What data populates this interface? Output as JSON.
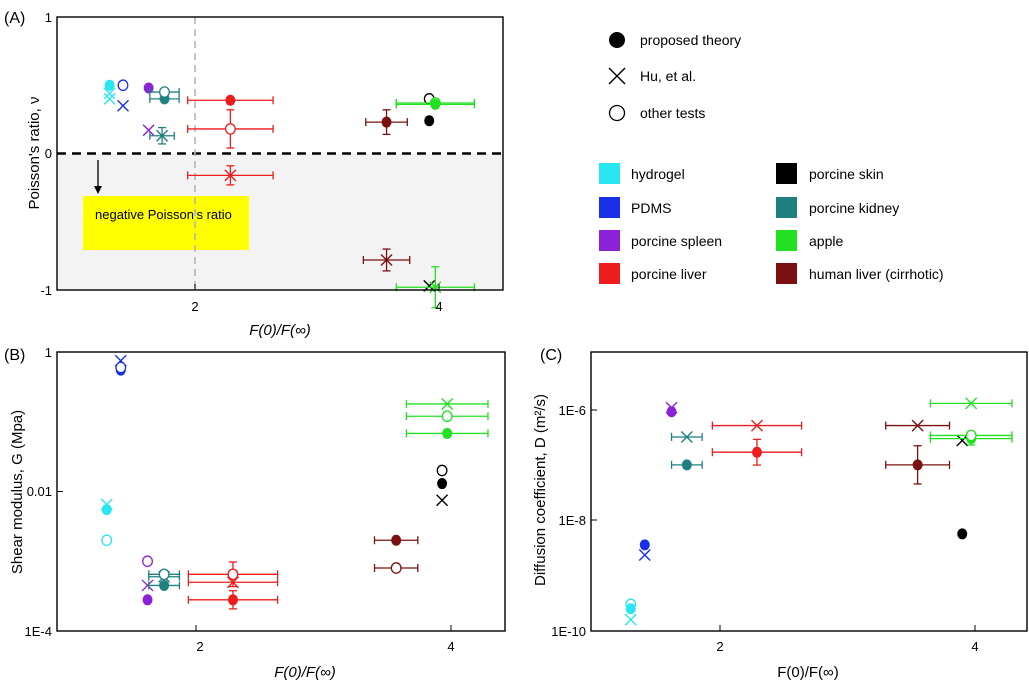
{
  "colors": {
    "hydrogel": "#29e6f0",
    "pdms": "#1a2fe8",
    "spleen": "#8b22d8",
    "liver": "#ee1c1c",
    "skin": "#000000",
    "kidney": "#1f8080",
    "apple": "#22e022",
    "human_liver": "#7a1010",
    "shade": "#f3f3f3",
    "yellow_box": "#ffff00"
  },
  "legend": {
    "markers": [
      {
        "symbol": "filled-circle",
        "label": "proposed theory"
      },
      {
        "symbol": "cross",
        "label": "Hu, et al."
      },
      {
        "symbol": "open-circle",
        "label": "other tests"
      }
    ],
    "materials": [
      {
        "key": "hydrogel",
        "label": "hydrogel"
      },
      {
        "key": "pdms",
        "label": "PDMS"
      },
      {
        "key": "spleen",
        "label": "porcine spleen"
      },
      {
        "key": "liver",
        "label": "porcine liver"
      },
      {
        "key": "skin",
        "label": "porcine skin"
      },
      {
        "key": "kidney",
        "label": "porcine kidney"
      },
      {
        "key": "apple",
        "label": "apple"
      },
      {
        "key": "human_liver",
        "label": "human liver (cirrhotic)"
      }
    ]
  },
  "chart_data": [
    {
      "panel_label": "(A)",
      "type": "scatter",
      "xlabel": "F(0)/F(∞)",
      "ylabel": "Poisson's ratio, ν",
      "xlim": [
        1.0,
        4.5
      ],
      "ylim": [
        -1,
        1
      ],
      "xticks": [
        2,
        4
      ],
      "yticks": [
        {
          "value": 1,
          "label": "1"
        },
        {
          "value": 0,
          "label": "0"
        },
        {
          "value": -1,
          "label": "-1"
        }
      ],
      "annotation": "negative Poisson's ratio",
      "reference_lines": {
        "y": 0,
        "x": 2
      },
      "points": [
        {
          "m": "hydrogel",
          "s": "cross",
          "x": 1.3,
          "y": 0.44
        },
        {
          "m": "hydrogel",
          "s": "filled",
          "x": 1.3,
          "y": 0.5
        },
        {
          "m": "hydrogel",
          "s": "cross",
          "x": 1.3,
          "y": 0.4
        },
        {
          "m": "pdms",
          "s": "filled",
          "x": 1.41,
          "y": 0.5
        },
        {
          "m": "pdms",
          "s": "open",
          "x": 1.41,
          "y": 0.5
        },
        {
          "m": "pdms",
          "s": "cross",
          "x": 1.41,
          "y": 0.35
        },
        {
          "m": "spleen",
          "s": "filled",
          "x": 1.62,
          "y": 0.48
        },
        {
          "m": "spleen",
          "s": "cross",
          "x": 1.62,
          "y": 0.17
        },
        {
          "m": "kidney",
          "s": "filled",
          "x": 1.75,
          "y": 0.4,
          "xerr": 0.12
        },
        {
          "m": "kidney",
          "s": "open",
          "x": 1.75,
          "y": 0.45,
          "xerr": 0.12
        },
        {
          "m": "kidney",
          "s": "cross",
          "x": 1.73,
          "y": 0.13,
          "xerr": 0.1,
          "yerr": 0.06
        },
        {
          "m": "liver",
          "s": "filled",
          "x": 2.29,
          "y": 0.39,
          "xerr": 0.35
        },
        {
          "m": "liver",
          "s": "open",
          "x": 2.29,
          "y": 0.18,
          "xerr": 0.35,
          "yerr": 0.14
        },
        {
          "m": "liver",
          "s": "cross",
          "x": 2.29,
          "y": -0.16,
          "xerr": 0.35,
          "yerr": 0.07
        },
        {
          "m": "human_liver",
          "s": "filled",
          "x": 3.57,
          "y": 0.23,
          "xerr": 0.17,
          "yerr": 0.09
        },
        {
          "m": "human_liver",
          "s": "cross",
          "x": 3.57,
          "y": -0.78,
          "xerr": 0.19,
          "yerr": 0.08
        },
        {
          "m": "skin",
          "s": "filled",
          "x": 3.92,
          "y": 0.24
        },
        {
          "m": "skin",
          "s": "open",
          "x": 3.92,
          "y": 0.4
        },
        {
          "m": "skin",
          "s": "cross",
          "x": 3.92,
          "y": -0.97
        },
        {
          "m": "apple",
          "s": "open",
          "x": 3.97,
          "y": 0.37,
          "xerr": 0.32
        },
        {
          "m": "apple",
          "s": "filled",
          "x": 3.97,
          "y": 0.36,
          "xerr": 0.32
        },
        {
          "m": "apple",
          "s": "cross",
          "x": 3.97,
          "y": -0.98,
          "xerr": 0.32,
          "yerr": 0.15
        }
      ]
    },
    {
      "panel_label": "(B)",
      "type": "scatter",
      "scale_y": "log",
      "xlabel": "F(0)/F(∞)",
      "ylabel": "Shear modulus, G (Mpa)",
      "xlim": [
        1.0,
        4.5
      ],
      "ylim": [
        0.0001,
        1
      ],
      "xticks": [
        2,
        4
      ],
      "yticks": [
        {
          "value": 1,
          "label": "1"
        },
        {
          "value": 0.01,
          "label": "0.01"
        },
        {
          "value": 0.0001,
          "label": "1E-4"
        }
      ],
      "points": [
        {
          "m": "hydrogel",
          "s": "cross",
          "x": 1.3,
          "y": 0.0065
        },
        {
          "m": "hydrogel",
          "s": "filled",
          "x": 1.3,
          "y": 0.0055
        },
        {
          "m": "hydrogel",
          "s": "open",
          "x": 1.3,
          "y": 0.002
        },
        {
          "m": "pdms",
          "s": "cross",
          "x": 1.41,
          "y": 0.75
        },
        {
          "m": "pdms",
          "s": "filled",
          "x": 1.41,
          "y": 0.55
        },
        {
          "m": "pdms",
          "s": "open",
          "x": 1.41,
          "y": 0.6
        },
        {
          "m": "spleen",
          "s": "open",
          "x": 1.62,
          "y": 0.001
        },
        {
          "m": "spleen",
          "s": "cross",
          "x": 1.62,
          "y": 0.00045
        },
        {
          "m": "spleen",
          "s": "filled",
          "x": 1.62,
          "y": 0.00028
        },
        {
          "m": "kidney",
          "s": "cross",
          "x": 1.75,
          "y": 0.0006,
          "xerr": 0.12
        },
        {
          "m": "kidney",
          "s": "open",
          "x": 1.75,
          "y": 0.00065,
          "xerr": 0.12
        },
        {
          "m": "kidney",
          "s": "filled",
          "x": 1.75,
          "y": 0.00045,
          "xerr": 0.12
        },
        {
          "m": "liver",
          "s": "open",
          "x": 2.29,
          "y": 0.00065,
          "xerr": 0.35,
          "yerr_factor": 1.5
        },
        {
          "m": "liver",
          "s": "cross",
          "x": 2.29,
          "y": 0.0005,
          "xerr": 0.35
        },
        {
          "m": "liver",
          "s": "filled",
          "x": 2.29,
          "y": 0.00028,
          "xerr": 0.35,
          "yerr_factor": 1.35
        },
        {
          "m": "human_liver",
          "s": "filled",
          "x": 3.57,
          "y": 0.002,
          "xerr": 0.17
        },
        {
          "m": "human_liver",
          "s": "open",
          "x": 3.57,
          "y": 0.0008,
          "xerr": 0.17
        },
        {
          "m": "skin",
          "s": "open",
          "x": 3.93,
          "y": 0.02
        },
        {
          "m": "skin",
          "s": "filled",
          "x": 3.93,
          "y": 0.013
        },
        {
          "m": "skin",
          "s": "cross",
          "x": 3.93,
          "y": 0.0075
        },
        {
          "m": "apple",
          "s": "cross",
          "x": 3.97,
          "y": 0.18,
          "xerr": 0.32
        },
        {
          "m": "apple",
          "s": "open",
          "x": 3.97,
          "y": 0.12,
          "xerr": 0.32
        },
        {
          "m": "apple",
          "s": "filled",
          "x": 3.97,
          "y": 0.068,
          "xerr": 0.32
        }
      ]
    },
    {
      "panel_label": "(C)",
      "type": "scatter",
      "scale_y": "log",
      "xlabel": "F(0)/F(∞)",
      "ylabel": "Diffusion coefficient, D (m²/s)",
      "xlim": [
        1.0,
        4.5
      ],
      "ylim": [
        1e-10,
        1e-05
      ],
      "xticks": [
        2,
        4
      ],
      "yticks": [
        {
          "value": 1e-06,
          "label": "1E-6"
        },
        {
          "value": 1e-08,
          "label": "1E-8"
        },
        {
          "value": 1e-10,
          "label": "1E-10"
        }
      ],
      "points": [
        {
          "m": "hydrogel",
          "s": "open",
          "x": 1.3,
          "y": 3e-10
        },
        {
          "m": "hydrogel",
          "s": "filled",
          "x": 1.3,
          "y": 2.5e-10
        },
        {
          "m": "hydrogel",
          "s": "cross",
          "x": 1.3,
          "y": 1.6e-10
        },
        {
          "m": "pdms",
          "s": "filled",
          "x": 1.41,
          "y": 3.5e-09
        },
        {
          "m": "pdms",
          "s": "cross",
          "x": 1.41,
          "y": 2.3e-09
        },
        {
          "m": "spleen",
          "s": "cross",
          "x": 1.62,
          "y": 1e-06
        },
        {
          "m": "spleen",
          "s": "filled",
          "x": 1.62,
          "y": 8.5e-07
        },
        {
          "m": "kidney",
          "s": "cross",
          "x": 1.74,
          "y": 3e-07,
          "xerr": 0.12
        },
        {
          "m": "kidney",
          "s": "filled",
          "x": 1.74,
          "y": 9.5e-08,
          "xerr": 0.12
        },
        {
          "m": "liver",
          "s": "cross",
          "x": 2.29,
          "y": 4.8e-07,
          "xerr": 0.35
        },
        {
          "m": "liver",
          "s": "filled",
          "x": 2.29,
          "y": 1.6e-07,
          "xerr": 0.35,
          "yerr_factor": 1.7
        },
        {
          "m": "human_liver",
          "s": "cross",
          "x": 3.55,
          "y": 4.8e-07,
          "xerr": 0.25
        },
        {
          "m": "human_liver",
          "s": "filled",
          "x": 3.55,
          "y": 9.5e-08,
          "xerr": 0.25,
          "yerr_factor": 2.2
        },
        {
          "m": "skin",
          "s": "cross",
          "x": 3.9,
          "y": 2.6e-07
        },
        {
          "m": "skin",
          "s": "filled",
          "x": 3.9,
          "y": 5.5e-09
        },
        {
          "m": "apple",
          "s": "cross",
          "x": 3.97,
          "y": 1.2e-06,
          "xerr": 0.32
        },
        {
          "m": "apple",
          "s": "filled",
          "x": 3.97,
          "y": 2.8e-07,
          "xerr": 0.32,
          "yerr_factor": 1.3
        },
        {
          "m": "apple",
          "s": "open",
          "x": 3.97,
          "y": 3.2e-07,
          "xerr": 0.32
        }
      ]
    }
  ]
}
